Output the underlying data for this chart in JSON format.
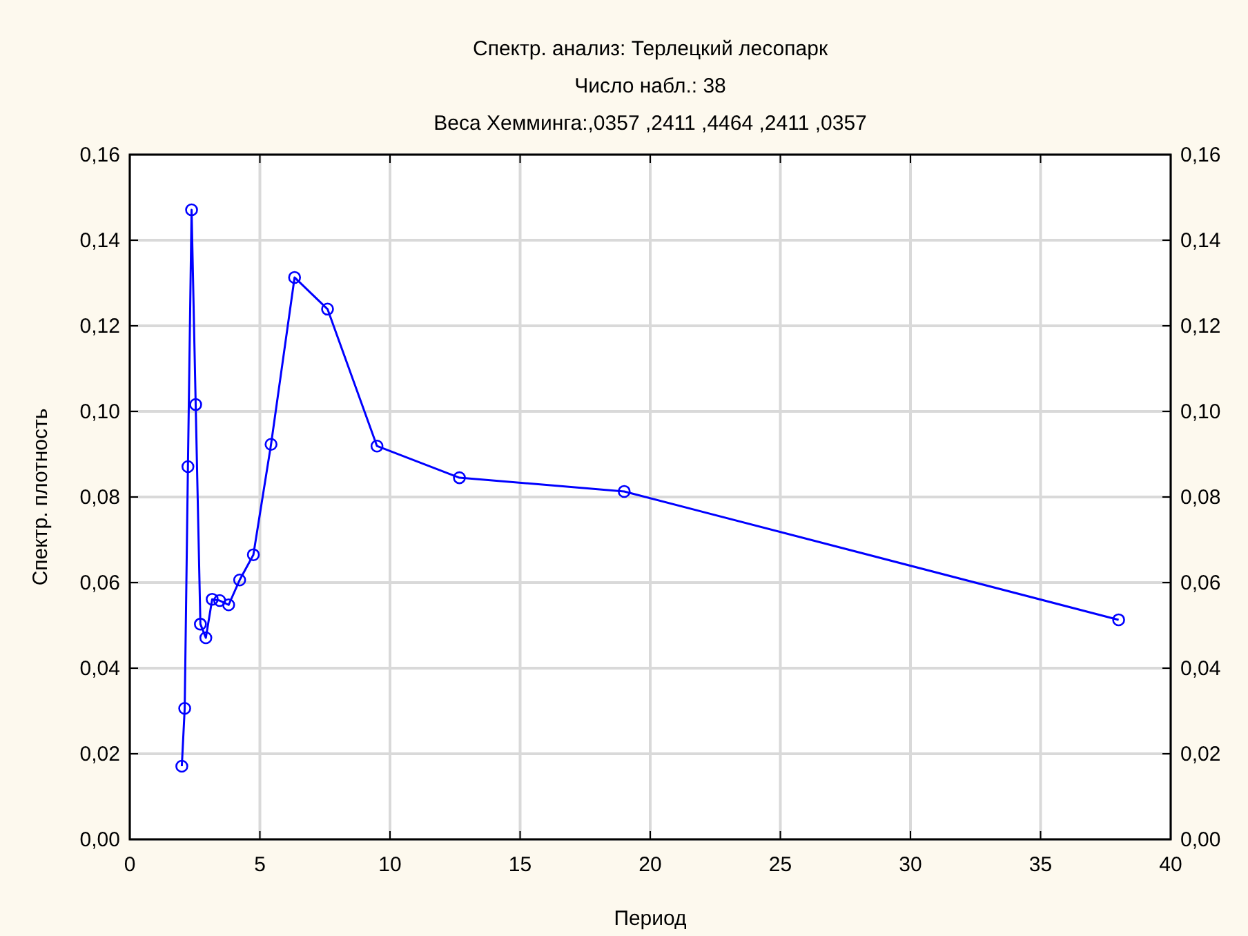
{
  "chart_data": {
    "type": "line",
    "title": "Спектр. анализ: Терлецкий лесопарк",
    "subtitle": "Число набл.: 38",
    "annotations": [
      "Веса Хемминга:,0357 ,2411 ,4464 ,2411 ,0357"
    ],
    "xlabel": "Период",
    "ylabel": "Спектр. плотность",
    "x": [
      2.0,
      2.111,
      2.235,
      2.375,
      2.533,
      2.714,
      2.923,
      3.167,
      3.455,
      3.8,
      4.222,
      4.75,
      5.429,
      6.333,
      7.6,
      9.5,
      12.667,
      19,
      38
    ],
    "series": [
      {
        "color": "#0000ff",
        "values": [
          0.0171,
          0.0306,
          0.0871,
          0.1471,
          0.1016,
          0.0503,
          0.0471,
          0.0561,
          0.0558,
          0.0548,
          0.0606,
          0.0665,
          0.0923,
          0.1313,
          0.1239,
          0.0919,
          0.0845,
          0.0813,
          0.0513
        ]
      }
    ],
    "marker": "circle",
    "line_style": "solid",
    "grid": true,
    "xlim": [
      0,
      40
    ],
    "xticks": [
      0,
      5,
      10,
      15,
      20,
      25,
      30,
      35,
      40
    ],
    "ylim": [
      0,
      0.16
    ],
    "yticks": [
      {
        "value": 0,
        "label": "0,00"
      },
      {
        "value": 0.02,
        "label": "0,02"
      },
      {
        "value": 0.04,
        "label": "0,04"
      },
      {
        "value": 0.06,
        "label": "0,06"
      },
      {
        "value": 0.08,
        "label": "0,08"
      },
      {
        "value": 0.1,
        "label": "0,10"
      },
      {
        "value": 0.12,
        "label": "0,12"
      },
      {
        "value": 0.14,
        "label": "0,14"
      },
      {
        "value": 0.16,
        "label": "0,16"
      }
    ],
    "y2lim": [
      0,
      0.16
    ],
    "y2ticks": [
      {
        "value": 0,
        "label": "0,00"
      },
      {
        "value": 0.02,
        "label": "0,02"
      },
      {
        "value": 0.04,
        "label": "0,04"
      },
      {
        "value": 0.06,
        "label": "0,06"
      },
      {
        "value": 0.08,
        "label": "0,08"
      },
      {
        "value": 0.1,
        "label": "0,10"
      },
      {
        "value": 0.12,
        "label": "0,12"
      },
      {
        "value": 0.14,
        "label": "0,14"
      },
      {
        "value": 0.16,
        "label": "0,16"
      }
    ]
  }
}
